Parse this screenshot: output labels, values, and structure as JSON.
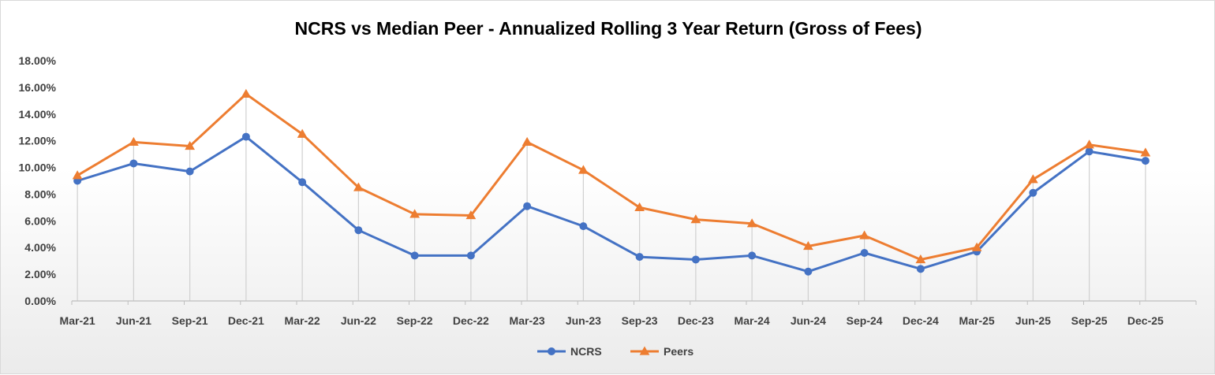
{
  "chart_data": {
    "type": "line",
    "title": "NCRS vs Median Peer - Annualized Rolling 3 Year Return (Gross of Fees)",
    "xlabel": "",
    "ylabel": "",
    "categories": [
      "Mar-21",
      "Jun-21",
      "Sep-21",
      "Dec-21",
      "Mar-22",
      "Jun-22",
      "Sep-22",
      "Dec-22",
      "Mar-23",
      "Jun-23",
      "Sep-23",
      "Dec-23",
      "Mar-24",
      "Jun-24",
      "Sep-24",
      "Dec-24",
      "Mar-25",
      "Jun-25",
      "Sep-25",
      "Dec-25"
    ],
    "ylim": [
      0,
      18
    ],
    "yticks": [
      0,
      2,
      4,
      6,
      8,
      10,
      12,
      14,
      16,
      18
    ],
    "ytick_labels": [
      "0.00%",
      "2.00%",
      "4.00%",
      "6.00%",
      "8.00%",
      "10.00%",
      "12.00%",
      "14.00%",
      "16.00%",
      "18.00%"
    ],
    "grid": "vertical drop lines at each category",
    "legend_position": "bottom-center",
    "series": [
      {
        "name": "NCRS",
        "color": "#4472C4",
        "marker": "circle",
        "values": [
          9.0,
          10.3,
          9.7,
          12.3,
          8.9,
          5.3,
          3.4,
          3.4,
          7.1,
          5.6,
          3.3,
          3.1,
          3.4,
          2.2,
          3.6,
          2.4,
          3.7,
          8.1,
          11.2,
          10.5
        ]
      },
      {
        "name": "Peers",
        "color": "#ED7D31",
        "marker": "triangle",
        "values": [
          9.4,
          11.9,
          11.6,
          15.5,
          12.5,
          8.5,
          6.5,
          6.4,
          11.9,
          9.8,
          7.0,
          6.1,
          5.8,
          4.1,
          4.9,
          3.1,
          4.0,
          9.1,
          11.7,
          11.1
        ]
      }
    ]
  }
}
